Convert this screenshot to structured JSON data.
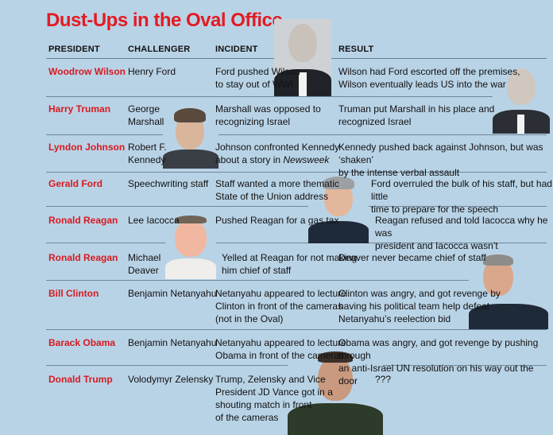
{
  "title": "Dust-Ups in the Oval Office",
  "headers": {
    "president": "PRESIDENT",
    "challenger": "CHALLENGER",
    "incident": "INCIDENT",
    "result": "RESULT"
  },
  "rows": [
    {
      "president": "Woodrow Wilson",
      "challenger": [
        "Henry Ford"
      ],
      "incident": [
        "Ford pushed Wilson",
        "to stay out of WWI"
      ],
      "result": [
        "Wilson had Ford escorted off the premises,",
        "Wilson eventually leads US into the war"
      ]
    },
    {
      "president": "Harry Truman",
      "challenger": [
        "George",
        "Marshall"
      ],
      "incident": [
        "Marshall was opposed to",
        "recognizing Israel"
      ],
      "result": [
        "Truman put Marshall in his place and",
        "recognized Israel"
      ]
    },
    {
      "president": "Lyndon Johnson",
      "challenger": [
        "Robert F.",
        "Kennedy"
      ],
      "incident": [
        "Johnson confronted Kennedy",
        "about a story in Newsweek"
      ],
      "result": [
        "Kennedy pushed back against Johnson, but was ‘shaken’",
        "by the intense verbal assault"
      ]
    },
    {
      "president": "Gerald Ford",
      "challenger": [
        "Speechwriting staff"
      ],
      "incident": [
        "Staff wanted a more thematic",
        "State of the Union address"
      ],
      "result": [
        "Ford overruled the bulk of his staff, but had little",
        "time to prepare for the speech"
      ]
    },
    {
      "president": "Ronald Reagan",
      "challenger": [
        "Lee Iacocca"
      ],
      "incident": [
        "Pushed Reagan for a gas tax"
      ],
      "result": [
        "Reagan refused and told Iacocca why he was",
        "president and Iacocca wasn’t"
      ]
    },
    {
      "president": "Ronald Reagan",
      "challenger": [
        "Michael",
        "Deaver"
      ],
      "incident": [
        "Yelled at Reagan for not making",
        "him chief of staff"
      ],
      "result": [
        "Deaver never became chief of staff"
      ]
    },
    {
      "president": "Bill Clinton",
      "challenger": [
        "Benjamin Netanyahu"
      ],
      "incident": [
        "Netanyahu appeared to lecture",
        "Clinton in front of the cameras",
        "(not in the Oval)"
      ],
      "result": [
        "Clinton was angry, and got revenge by",
        "having his political team help defeat",
        "Netanyahu’s reelection bid"
      ]
    },
    {
      "president": "Barack Obama",
      "challenger": [
        "Benjamin Netanyahu"
      ],
      "incident": [
        "Netanyahu appeared to lecture",
        "Obama in front of the cameras"
      ],
      "result": [
        "Obama was angry, and got revenge by pushing through",
        "an anti-Israel UN resolution on his way out the door"
      ]
    },
    {
      "president": "Donald Trump",
      "challenger": [
        "Volodymyr Zelensky"
      ],
      "incident": [
        "Trump, Zelensky and Vice",
        "President JD Vance got in a",
        "shouting match in front",
        "of the cameras"
      ],
      "result": [
        "???"
      ]
    }
  ]
}
